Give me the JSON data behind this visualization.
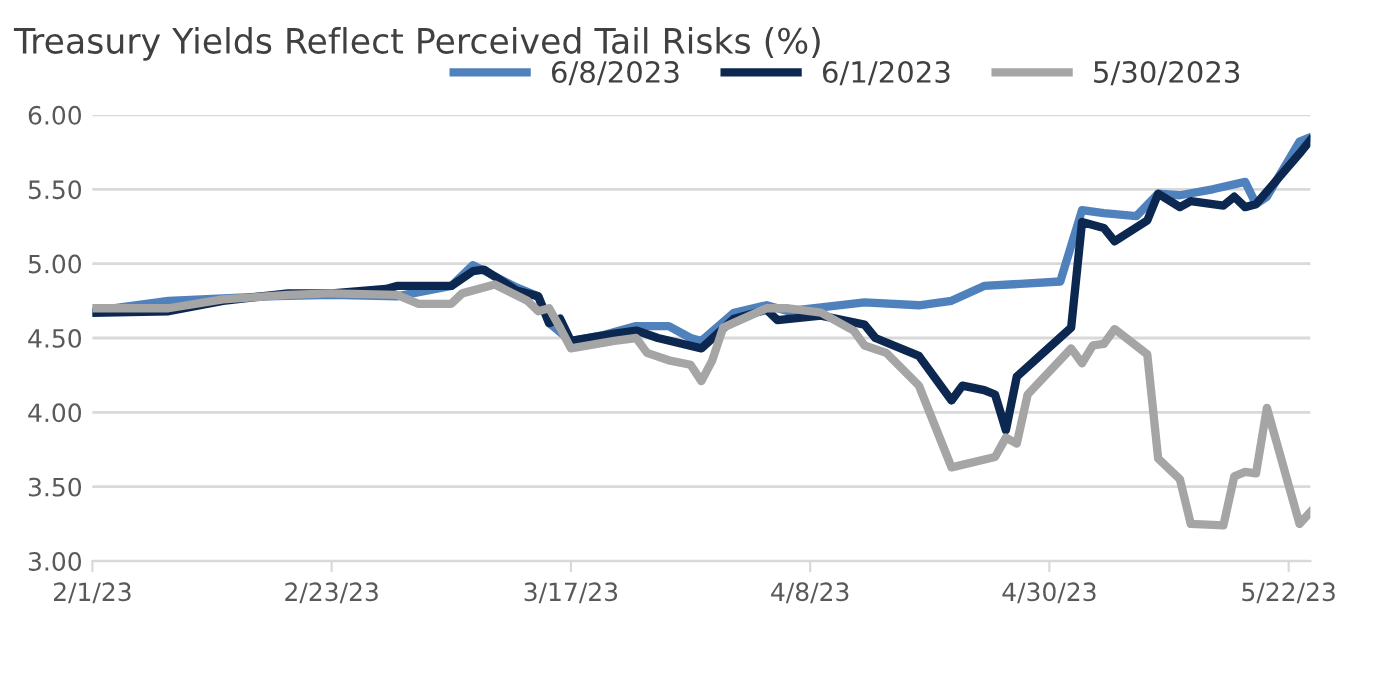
{
  "chart_data": {
    "type": "line",
    "title": "Treasury Yields Reflect Perceived Tail Risks (%)",
    "xlim": [
      "2023-02-01",
      "2023-05-24"
    ],
    "xticks": [
      {
        "value": "2023-02-01",
        "label": "2/1/23"
      },
      {
        "value": "2023-02-23",
        "label": "2/23/23"
      },
      {
        "value": "2023-03-17",
        "label": "3/17/23"
      },
      {
        "value": "2023-04-08",
        "label": "4/8/23"
      },
      {
        "value": "2023-04-30",
        "label": "4/30/23"
      },
      {
        "value": "2023-05-22",
        "label": "5/22/23"
      }
    ],
    "ylim": [
      3,
      6
    ],
    "yticks": [
      {
        "value": 3,
        "label": "3.00"
      },
      {
        "value": 3.5,
        "label": "3.50"
      },
      {
        "value": 4,
        "label": "4.00"
      },
      {
        "value": 4.5,
        "label": "4.50"
      },
      {
        "value": 5,
        "label": "5.00"
      },
      {
        "value": 5.5,
        "label": "5.50"
      },
      {
        "value": 6,
        "label": "6.00"
      }
    ],
    "grid": "y",
    "legend": "top",
    "line_style": "solid",
    "marker": "none",
    "series": [
      {
        "name": "6/8/2023",
        "color": "#4f81bd",
        "x": [
          "2023-02-01",
          "2023-02-08",
          "2023-02-17",
          "2023-02-23",
          "2023-03-01",
          "2023-03-06",
          "2023-03-08",
          "2023-03-12",
          "2023-03-14",
          "2023-03-15",
          "2023-03-17",
          "2023-03-20",
          "2023-03-23",
          "2023-03-26",
          "2023-03-28",
          "2023-03-29",
          "2023-04-01",
          "2023-04-04",
          "2023-04-06",
          "2023-04-13",
          "2023-04-18",
          "2023-04-21",
          "2023-04-24",
          "2023-05-01",
          "2023-05-03",
          "2023-05-05",
          "2023-05-08",
          "2023-05-10",
          "2023-05-12",
          "2023-05-15",
          "2023-05-18",
          "2023-05-19",
          "2023-05-20",
          "2023-05-23",
          "2023-05-24"
        ],
        "values": [
          4.68,
          4.75,
          4.78,
          4.79,
          4.78,
          4.85,
          4.99,
          4.84,
          4.78,
          4.6,
          4.48,
          4.52,
          4.58,
          4.58,
          4.5,
          4.48,
          4.67,
          4.72,
          4.68,
          4.74,
          4.72,
          4.75,
          4.85,
          4.88,
          5.36,
          5.34,
          5.32,
          5.47,
          5.46,
          5.5,
          5.55,
          5.4,
          5.45,
          5.82,
          5.85
        ]
      },
      {
        "name": "6/1/2023",
        "color": "#0d2850",
        "x": [
          "2023-02-01",
          "2023-02-08",
          "2023-02-13",
          "2023-02-19",
          "2023-02-23",
          "2023-02-28",
          "2023-03-01",
          "2023-03-06",
          "2023-03-08",
          "2023-03-09",
          "2023-03-12",
          "2023-03-14",
          "2023-03-15",
          "2023-03-16",
          "2023-03-17",
          "2023-03-21",
          "2023-03-23",
          "2023-03-25",
          "2023-03-29",
          "2023-04-01",
          "2023-04-04",
          "2023-04-05",
          "2023-04-09",
          "2023-04-13",
          "2023-04-14",
          "2023-04-18",
          "2023-04-21",
          "2023-04-22",
          "2023-04-24",
          "2023-04-25",
          "2023-04-26",
          "2023-04-27",
          "2023-05-02",
          "2023-05-03",
          "2023-05-05",
          "2023-05-06",
          "2023-05-09",
          "2023-05-10",
          "2023-05-12",
          "2023-05-13",
          "2023-05-16",
          "2023-05-17",
          "2023-05-18",
          "2023-05-19",
          "2023-05-23",
          "2023-05-24"
        ],
        "values": [
          4.67,
          4.68,
          4.75,
          4.8,
          4.8,
          4.83,
          4.85,
          4.85,
          4.95,
          4.96,
          4.82,
          4.78,
          4.6,
          4.63,
          4.48,
          4.53,
          4.55,
          4.5,
          4.43,
          4.63,
          4.69,
          4.62,
          4.65,
          4.59,
          4.5,
          4.38,
          4.08,
          4.18,
          4.15,
          4.12,
          3.88,
          4.24,
          4.57,
          5.28,
          5.24,
          5.15,
          5.29,
          5.47,
          5.38,
          5.42,
          5.39,
          5.45,
          5.38,
          5.4,
          5.74,
          5.83
        ]
      },
      {
        "name": "5/30/2023",
        "color": "#a5a5a5",
        "x": [
          "2023-02-01",
          "2023-02-08",
          "2023-02-13",
          "2023-02-19",
          "2023-02-23",
          "2023-03-01",
          "2023-03-03",
          "2023-03-06",
          "2023-03-07",
          "2023-03-10",
          "2023-03-13",
          "2023-03-14",
          "2023-03-15",
          "2023-03-16",
          "2023-03-17",
          "2023-03-21",
          "2023-03-23",
          "2023-03-24",
          "2023-03-26",
          "2023-03-28",
          "2023-03-29",
          "2023-03-30",
          "2023-03-31",
          "2023-04-04",
          "2023-04-06",
          "2023-04-09",
          "2023-04-12",
          "2023-04-13",
          "2023-04-15",
          "2023-04-18",
          "2023-04-21",
          "2023-04-25",
          "2023-04-26",
          "2023-04-27",
          "2023-04-28",
          "2023-05-02",
          "2023-05-03",
          "2023-05-04",
          "2023-05-05",
          "2023-05-06",
          "2023-05-09",
          "2023-05-10",
          "2023-05-12",
          "2023-05-13",
          "2023-05-16",
          "2023-05-17",
          "2023-05-18",
          "2023-05-19",
          "2023-05-20",
          "2023-05-23",
          "2023-05-24"
        ],
        "values": [
          4.7,
          4.7,
          4.76,
          4.79,
          4.8,
          4.79,
          4.73,
          4.73,
          4.8,
          4.86,
          4.75,
          4.68,
          4.7,
          4.57,
          4.43,
          4.48,
          4.5,
          4.4,
          4.35,
          4.32,
          4.21,
          4.35,
          4.57,
          4.7,
          4.7,
          4.67,
          4.55,
          4.45,
          4.4,
          4.18,
          3.63,
          3.7,
          3.83,
          3.79,
          4.12,
          4.43,
          4.33,
          4.45,
          4.46,
          4.56,
          4.39,
          3.69,
          3.55,
          3.25,
          3.24,
          3.57,
          3.6,
          3.59,
          4.03,
          3.25,
          3.33
        ]
      }
    ]
  }
}
